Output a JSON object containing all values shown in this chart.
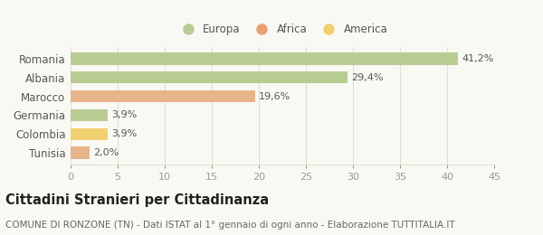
{
  "categories": [
    "Tunisia",
    "Colombia",
    "Germania",
    "Marocco",
    "Albania",
    "Romania"
  ],
  "values": [
    2.0,
    3.9,
    3.9,
    19.6,
    29.4,
    41.2
  ],
  "labels": [
    "2,0%",
    "3,9%",
    "3,9%",
    "19,6%",
    "29,4%",
    "41,2%"
  ],
  "bar_colors": [
    "#e8b48a",
    "#f0d070",
    "#b8cc94",
    "#e8b48a",
    "#b8cc94",
    "#b8cc94"
  ],
  "legend_items": [
    {
      "label": "Europa",
      "color": "#b8cc94"
    },
    {
      "label": "Africa",
      "color": "#e8a070"
    },
    {
      "label": "America",
      "color": "#f0d070"
    }
  ],
  "xlim": [
    0,
    45
  ],
  "xticks": [
    0,
    5,
    10,
    15,
    20,
    25,
    30,
    35,
    40,
    45
  ],
  "title": "Cittadini Stranieri per Cittadinanza",
  "subtitle": "COMUNE DI RONZONE (TN) - Dati ISTAT al 1° gennaio di ogni anno - Elaborazione TUTTITALIA.IT",
  "background_color": "#f9f9f4",
  "grid_color": "#e0e0d0",
  "bar_height": 0.65,
  "title_fontsize": 10.5,
  "subtitle_fontsize": 7.5,
  "label_fontsize": 8,
  "ytick_fontsize": 8.5,
  "xtick_fontsize": 8
}
